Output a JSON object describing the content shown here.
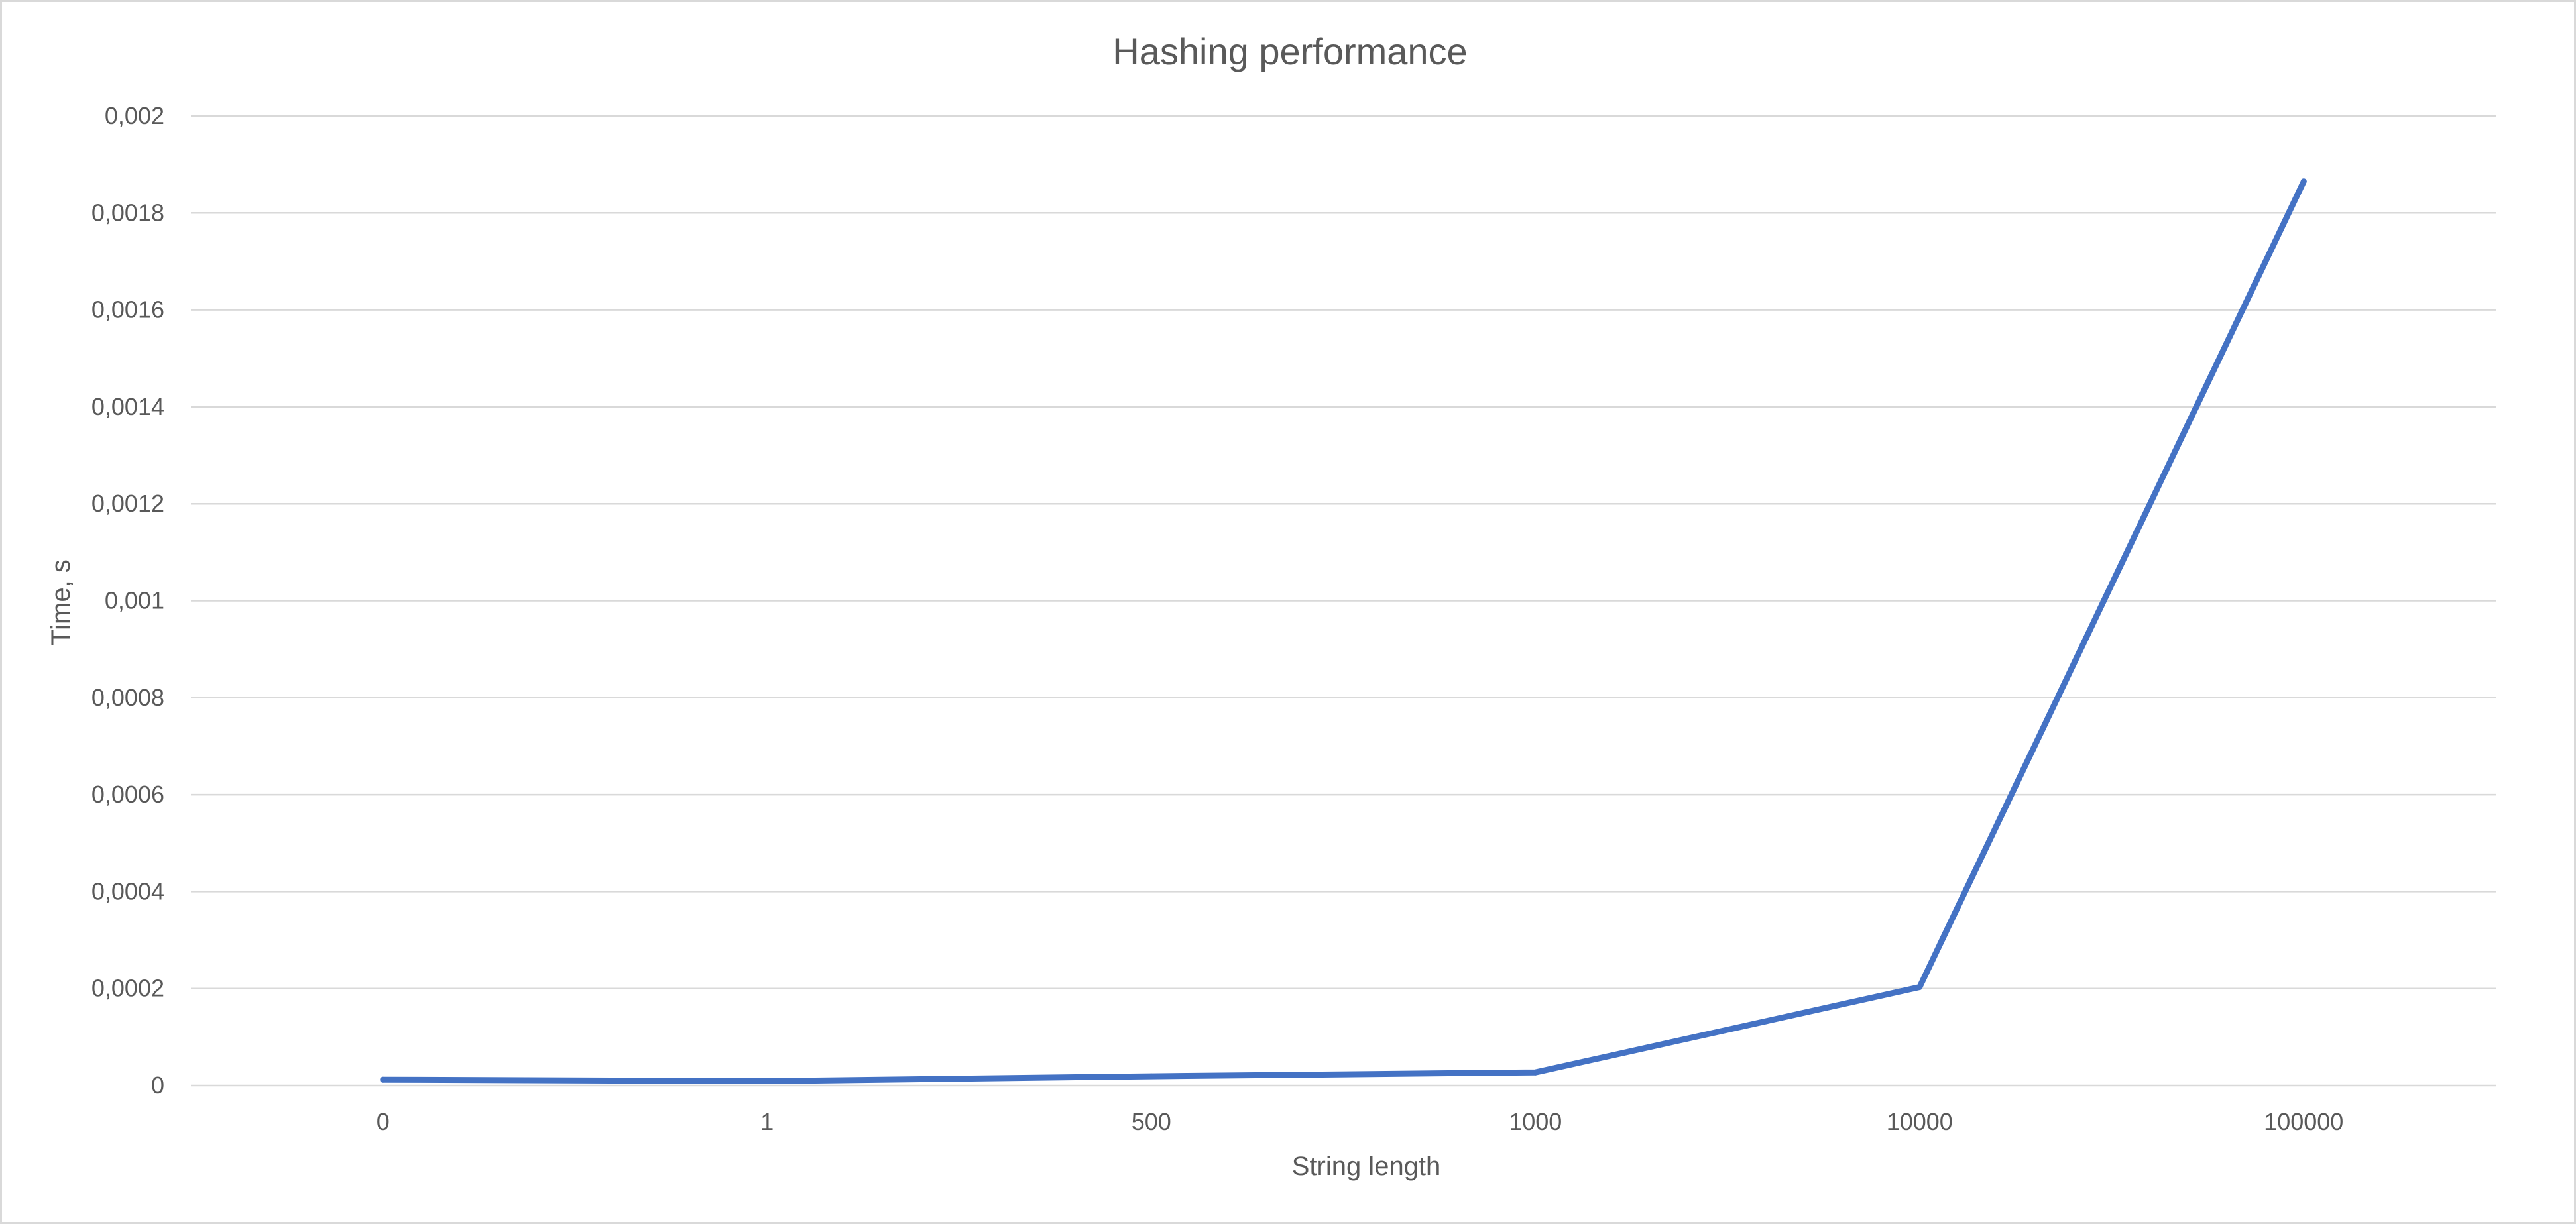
{
  "chart_data": {
    "type": "line",
    "title": "Hashing performance",
    "xlabel": "String length",
    "ylabel": "Time, s",
    "categories": [
      "0",
      "1",
      "500",
      "1000",
      "10000",
      "100000"
    ],
    "series": [
      {
        "values": [
          1.2e-05,
          9e-06,
          1.9e-05,
          2.7e-05,
          0.000203,
          0.001865
        ]
      }
    ],
    "ylim": [
      0,
      0.002
    ],
    "yticks": [
      "0",
      "0,0002",
      "0,0004",
      "0,0006",
      "0,0008",
      "0,001",
      "0,0012",
      "0,0014",
      "0,0016",
      "0,0018",
      "0,002"
    ],
    "grid": true,
    "legend": "none",
    "colors": {
      "line": "#4472C4",
      "grid": "#d9d9d9",
      "text": "#595959",
      "border": "#d9d9d9"
    }
  }
}
